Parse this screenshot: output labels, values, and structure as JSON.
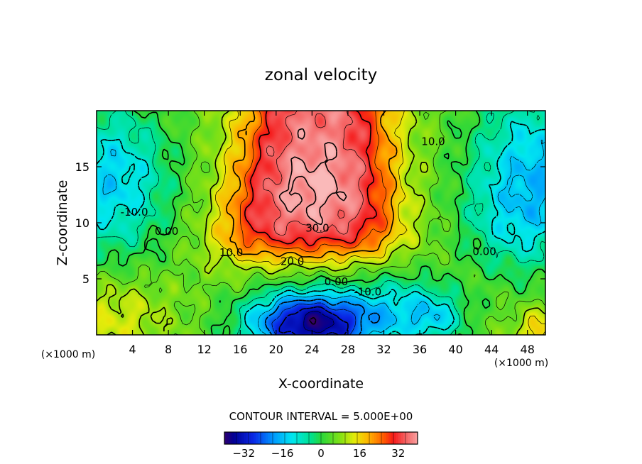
{
  "chart_data": {
    "type": "heatmap",
    "subtype": "filled-contour",
    "title": "zonal velocity",
    "xlabel": "X-coordinate",
    "ylabel": "Z-coordinate",
    "x_unit_left": "(×1000 m)",
    "x_unit_right": "(×1000 m)",
    "xlim": [
      0,
      50
    ],
    "ylim": [
      0,
      20
    ],
    "x_ticks": [
      4,
      8,
      12,
      16,
      20,
      24,
      28,
      32,
      36,
      40,
      44,
      48
    ],
    "y_ticks": [
      5,
      10,
      15
    ],
    "contour_interval_label": "CONTOUR INTERVAL = 5.000E+00",
    "contour_interval": 5,
    "contour_labels": [
      {
        "text": "-10.0",
        "x": 4.2,
        "y": 11.0
      },
      {
        "text": "0.00",
        "x": 7.8,
        "y": 9.3
      },
      {
        "text": "10.0",
        "x": 15.0,
        "y": 7.4
      },
      {
        "text": "20.0",
        "x": 21.8,
        "y": 6.6
      },
      {
        "text": "30.0",
        "x": 24.6,
        "y": 9.6
      },
      {
        "text": "0.00",
        "x": 26.7,
        "y": 4.8
      },
      {
        "text": "-10.0",
        "x": 30.2,
        "y": 3.9
      },
      {
        "text": "10.0",
        "x": 37.5,
        "y": 17.3
      },
      {
        "text": "0.00",
        "x": 43.2,
        "y": 7.5
      }
    ],
    "colorbar": {
      "range": [
        -40,
        40
      ],
      "tick_labels": [
        "-32",
        "-16",
        "0",
        "16",
        "32"
      ],
      "tick_values": [
        -32,
        -16,
        0,
        16,
        32
      ]
    },
    "features": [
      {
        "kind": "jet-max",
        "x": 25,
        "y": 13.5,
        "value": 36
      },
      {
        "kind": "near-surface-min",
        "x": 24,
        "y": 1.0,
        "value": -33
      },
      {
        "kind": "upper-left-min",
        "x": 1.5,
        "y": 13.5,
        "value": -14
      },
      {
        "kind": "upper-right-min",
        "x": 48.5,
        "y": 14.5,
        "value": -14
      },
      {
        "kind": "lower-left-max",
        "x": 2,
        "y": 2,
        "value": 12
      },
      {
        "kind": "lower-right-max",
        "x": 49,
        "y": 0.8,
        "value": 18
      }
    ]
  }
}
